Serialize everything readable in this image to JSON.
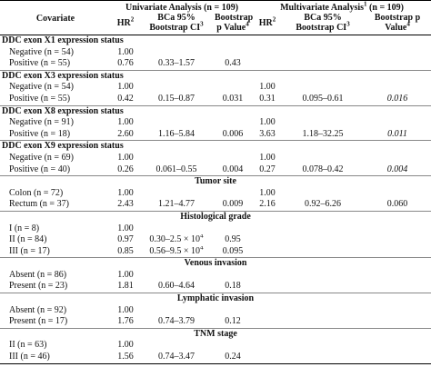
{
  "header": {
    "covariate": "Covariate",
    "univariate": {
      "text": "Univariate Analysis (n = 109)"
    },
    "multivariate": {
      "text": "Multivariate Analysis",
      "sup": "1",
      "after": "(n = 109)"
    },
    "columns": [
      {
        "text": "HR",
        "sup": "2"
      },
      {
        "text": "BCa 95% Bootstrap CI",
        "sup": "3"
      },
      {
        "text": "Bootstrap p Value",
        "sup": "4"
      },
      {
        "text": "HR",
        "sup": "2"
      },
      {
        "text": "BCa 95% Bootstrap CI",
        "sup": "3"
      },
      {
        "text": "Bootstrap p Value",
        "sup": "4"
      }
    ]
  },
  "groups": [
    {
      "title": "DDC exon X1 expression status",
      "rows": [
        {
          "label": "Negative (n = 54)",
          "uni": [
            "1.00"
          ]
        },
        {
          "label": "Positive (n = 55)",
          "uni": [
            "0.76",
            "0.33–1.57",
            "0.43"
          ]
        }
      ]
    },
    {
      "title": "DDC exon X3 expression status",
      "rows": [
        {
          "label": "Negative (n = 54)",
          "uni": [
            "1.00"
          ],
          "multi": [
            "1.00"
          ]
        },
        {
          "label": "Positive (n = 55)",
          "uni": [
            "0.42",
            "0.15–0.87",
            "0.031"
          ],
          "multi": [
            "0.31",
            "0.095–0.61",
            "0.016"
          ]
        }
      ]
    },
    {
      "title": "DDC exon X8 expression status",
      "rows": [
        {
          "label": "Negative (n = 91)",
          "uni": [
            "1.00"
          ],
          "multi": [
            "1.00"
          ]
        },
        {
          "label": "Positive (n = 18)",
          "uni": [
            "2.60",
            "1.16–5.84",
            "0.006"
          ],
          "multi": [
            "3.63",
            "1.18–32.25",
            "0.011"
          ]
        }
      ]
    },
    {
      "title": "DDC exon X9 expression status",
      "rows": [
        {
          "label": "Negative (n = 69)",
          "uni": [
            "1.00"
          ],
          "multi": [
            "1.00"
          ]
        },
        {
          "label": "Positive (n = 40)",
          "uni": [
            "0.26",
            "0.061–0.55",
            "0.004"
          ],
          "multi": [
            "0.27",
            "0.078–0.42",
            "0.004"
          ]
        }
      ]
    },
    {
      "title": "Tumor site",
      "rows": [
        {
          "label": "Colon (n = 72)",
          "uni": [
            "1.00"
          ],
          "multi": [
            "1.00"
          ]
        },
        {
          "label": "Rectum (n = 37)",
          "uni": [
            "2.43",
            "1.21–4.77",
            "0.009"
          ],
          "multi": [
            "2.16",
            "0.92–6.26",
            "0.060"
          ]
        }
      ]
    },
    {
      "title": "Histological grade",
      "rows": [
        {
          "label": "I (n = 8)",
          "uni": [
            "1.00"
          ]
        },
        {
          "label": "II (n = 84)",
          "uni": [
            "0.97",
            {
              "text": "0.30–2.5 × 10",
              "sup": "4"
            },
            "0.95"
          ]
        },
        {
          "label": "III (n = 17)",
          "uni": [
            "0.85",
            {
              "text": "0.56–9.5 × 10",
              "sup": "4"
            },
            "0.095"
          ]
        }
      ]
    },
    {
      "title": "Venous invasion",
      "rows": [
        {
          "label": "Absent (n = 86)",
          "uni": [
            "1.00"
          ]
        },
        {
          "label": "Present (n = 23)",
          "uni": [
            "1.81",
            "0.60–4.64",
            "0.18"
          ]
        }
      ]
    },
    {
      "title": "Lymphatic invasion",
      "rows": [
        {
          "label": "Absent (n = 92)",
          "uni": [
            "1.00"
          ]
        },
        {
          "label": "Present (n = 17)",
          "uni": [
            "1.76",
            "0.74–3.79",
            "0.12"
          ]
        }
      ]
    },
    {
      "title": "TNM stage",
      "rows": [
        {
          "label": "II (n = 63)",
          "uni": [
            "1.00"
          ]
        },
        {
          "label": "III (n = 46)",
          "uni": [
            "1.56",
            "0.74–3.47",
            "0.24"
          ]
        }
      ]
    }
  ]
}
